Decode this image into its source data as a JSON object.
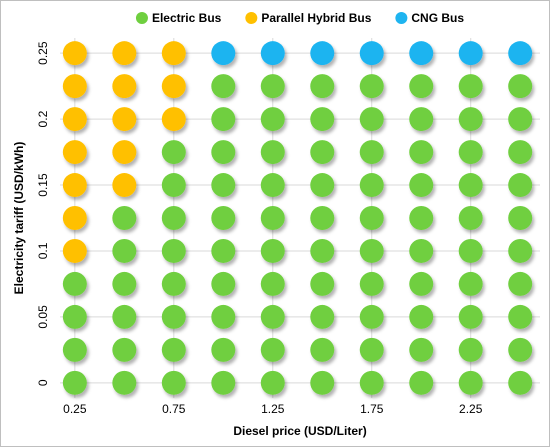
{
  "chart_data": {
    "type": "scatter",
    "xlabel": "Diesel price (USD/Liter)",
    "ylabel": "Electricity tariff (USD/kWh)",
    "xlim": [
      0.175,
      2.6
    ],
    "ylim": [
      -0.0115,
      0.2615
    ],
    "xticks": [
      0.25,
      0.75,
      1.25,
      1.75,
      2.25
    ],
    "yticks": [
      0,
      0.05,
      0.1,
      0.15,
      0.2,
      0.25
    ],
    "grid": true,
    "legend": "top",
    "series": [
      {
        "name": "Electric Bus",
        "color": "#6fcf3f",
        "x": [
          1,
          1.25,
          1.5,
          1.75,
          2,
          2.25,
          2.5,
          1,
          1.25,
          1.5,
          1.75,
          2,
          2.25,
          2.5,
          0.75,
          1,
          1.25,
          1.5,
          1.75,
          2,
          2.25,
          2.5,
          0.75,
          1,
          1.25,
          1.5,
          1.75,
          2,
          2.25,
          2.5,
          0.5,
          0.75,
          1,
          1.25,
          1.5,
          1.75,
          2,
          2.25,
          2.5,
          0.5,
          0.75,
          1,
          1.25,
          1.5,
          1.75,
          2,
          2.25,
          2.5,
          0.25,
          0.5,
          0.75,
          1,
          1.25,
          1.5,
          1.75,
          2,
          2.25,
          2.5,
          0.25,
          0.5,
          0.75,
          1,
          1.25,
          1.5,
          1.75,
          2,
          2.25,
          2.5,
          0.25,
          0.5,
          0.75,
          1,
          1.25,
          1.5,
          1.75,
          2,
          2.25,
          2.5,
          0.25,
          0.5,
          0.75,
          1,
          1.25,
          1.5,
          1.75,
          2,
          2.25,
          2.5
        ],
        "values": [
          0.225,
          0.225,
          0.225,
          0.225,
          0.225,
          0.225,
          0.225,
          0.2,
          0.2,
          0.2,
          0.2,
          0.2,
          0.2,
          0.2,
          0.175,
          0.175,
          0.175,
          0.175,
          0.175,
          0.175,
          0.175,
          0.175,
          0.15,
          0.15,
          0.15,
          0.15,
          0.15,
          0.15,
          0.15,
          0.15,
          0.125,
          0.125,
          0.125,
          0.125,
          0.125,
          0.125,
          0.125,
          0.125,
          0.125,
          0.1,
          0.1,
          0.1,
          0.1,
          0.1,
          0.1,
          0.1,
          0.1,
          0.1,
          0.075,
          0.075,
          0.075,
          0.075,
          0.075,
          0.075,
          0.075,
          0.075,
          0.075,
          0.075,
          0.05,
          0.05,
          0.05,
          0.05,
          0.05,
          0.05,
          0.05,
          0.05,
          0.05,
          0.05,
          0.025,
          0.025,
          0.025,
          0.025,
          0.025,
          0.025,
          0.025,
          0.025,
          0.025,
          0.025,
          0,
          0,
          0,
          0,
          0,
          0,
          0,
          0,
          0,
          0
        ]
      },
      {
        "name": "Parallel Hybrid Bus",
        "color": "#ffc000",
        "x": [
          0.25,
          0.5,
          0.75,
          0.25,
          0.5,
          0.75,
          0.25,
          0.5,
          0.75,
          0.25,
          0.5,
          0.25,
          0.5,
          0.25,
          0.25
        ],
        "values": [
          0.25,
          0.25,
          0.25,
          0.225,
          0.225,
          0.225,
          0.2,
          0.2,
          0.2,
          0.175,
          0.175,
          0.15,
          0.15,
          0.125,
          0.1
        ]
      },
      {
        "name": "CNG Bus",
        "color": "#1eb4f0",
        "x": [
          1,
          1.25,
          1.5,
          1.75,
          2,
          2.25,
          2.5
        ],
        "values": [
          0.25,
          0.25,
          0.25,
          0.25,
          0.25,
          0.25,
          0.25
        ]
      }
    ]
  }
}
